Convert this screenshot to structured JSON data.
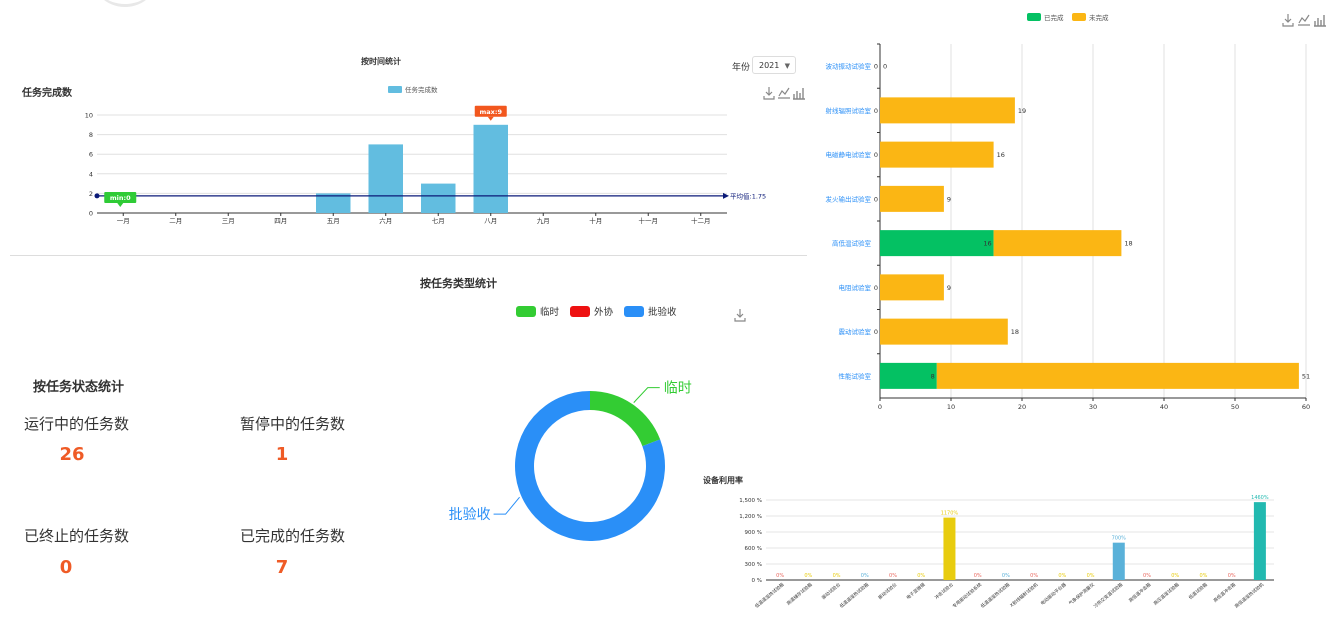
{
  "colors": {
    "task_bar": "#62bde0",
    "min_marker": "#2fcb36",
    "max_marker": "#f2571e",
    "avg_line": "#0b1a78",
    "done": "#04c163",
    "undone": "#fbb614",
    "pie_temp": "#33cc33",
    "pie_outsource": "#ee1111",
    "pie_batch": "#2a8ff7",
    "stat_value": "#ef5b26",
    "util_gold": "#e8cc0e",
    "util_blue": "#5ab1d9",
    "util_teal": "#22b9b0"
  },
  "time_stats": {
    "title": "按时间统计",
    "panel_title": "任务完成数",
    "year_label": "年份",
    "year_value": "2021",
    "min_label": "min:0",
    "max_label": "max:9",
    "avg_label": "平均值:1.75"
  },
  "type_stats": {
    "title": "按任务类型统计"
  },
  "status_stats": {
    "title": "按任务状态统计",
    "items": [
      {
        "label": "运行中的任务数",
        "value": "26"
      },
      {
        "label": "暂停中的任务数",
        "value": "1"
      },
      {
        "label": "已终止的任务数",
        "value": "0"
      },
      {
        "label": "已完成的任务数",
        "value": "7"
      }
    ]
  },
  "utilization": {
    "title": "设备利用率"
  },
  "chart_data": [
    {
      "type": "bar",
      "title": "任务完成数",
      "categories": [
        "一月",
        "二月",
        "三月",
        "四月",
        "五月",
        "六月",
        "七月",
        "八月",
        "九月",
        "十月",
        "十一月",
        "十二月"
      ],
      "series": [
        {
          "name": "任务完成数",
          "values": [
            0,
            0,
            0,
            0,
            2,
            7,
            3,
            9,
            0,
            0,
            0,
            0
          ]
        }
      ],
      "ylim": [
        0,
        10
      ],
      "yticks": [
        0,
        2,
        4,
        6,
        8,
        10
      ],
      "markers": {
        "min": 0,
        "max": 9,
        "average": 1.75
      },
      "legend": "top-center",
      "grid": true
    },
    {
      "type": "pie",
      "title": "按任务类型统计",
      "legend": [
        "临时",
        "外协",
        "批验收"
      ],
      "slices": [
        {
          "name": "临时",
          "value": 5
        },
        {
          "name": "外协",
          "value": 0
        },
        {
          "name": "批验收",
          "value": 21
        }
      ],
      "labels_shown": [
        "临时",
        "批验收"
      ],
      "donut": true
    },
    {
      "type": "bar",
      "orientation": "horizontal",
      "stacked": true,
      "categories": [
        "波动振动试验室",
        "射线辐照试验室",
        "电磁静电试验室",
        "发火输出试验室",
        "高低温试验室",
        "电阻试验室",
        "震动试验室",
        "性能试验室"
      ],
      "series": [
        {
          "name": "已完成",
          "values": [
            0,
            0,
            0,
            0,
            16,
            0,
            0,
            8
          ]
        },
        {
          "name": "未完成",
          "values": [
            0,
            19,
            16,
            9,
            18,
            9,
            18,
            51
          ]
        }
      ],
      "xlim": [
        0,
        60
      ],
      "xticks": [
        0,
        10,
        20,
        30,
        40,
        50,
        60
      ],
      "legend": "top-left",
      "grid": true
    },
    {
      "type": "bar",
      "title": "设备利用率",
      "categories": [
        "低温温湿热试验箱",
        "高温储存试验箱",
        "振动试验台",
        "低温温湿热试验箱",
        "振动试验台",
        "电子显微镜",
        "冲击试验台",
        "专用振动试验系统",
        "低温温湿热试验箱",
        "X射线辐射试验机",
        "电动振动平台器",
        "气象保护测量仪",
        "冷热交变温试验箱",
        "高低温冲击箱",
        "高压温湿试验箱",
        "低温试验箱",
        "高低温冲击箱",
        "高低温湿热试验机"
      ],
      "values": [
        0,
        0,
        0,
        0,
        0,
        0,
        1170,
        0,
        0,
        0,
        0,
        0,
        700,
        0,
        0,
        0,
        0,
        1460
      ],
      "value_labels": [
        "0%",
        "0%",
        "0%",
        "0%",
        "0%",
        "0%",
        "1170%",
        "0%",
        "0%",
        "0%",
        "0%",
        "0%",
        "700%",
        "0%",
        "0%",
        "0%",
        "0%",
        "1460%"
      ],
      "ylim": [
        0,
        1500
      ],
      "yticks": [
        "0 %",
        "300 %",
        "600 %",
        "900 %",
        "1,200 %",
        "1,500 %"
      ],
      "grid": true
    }
  ]
}
